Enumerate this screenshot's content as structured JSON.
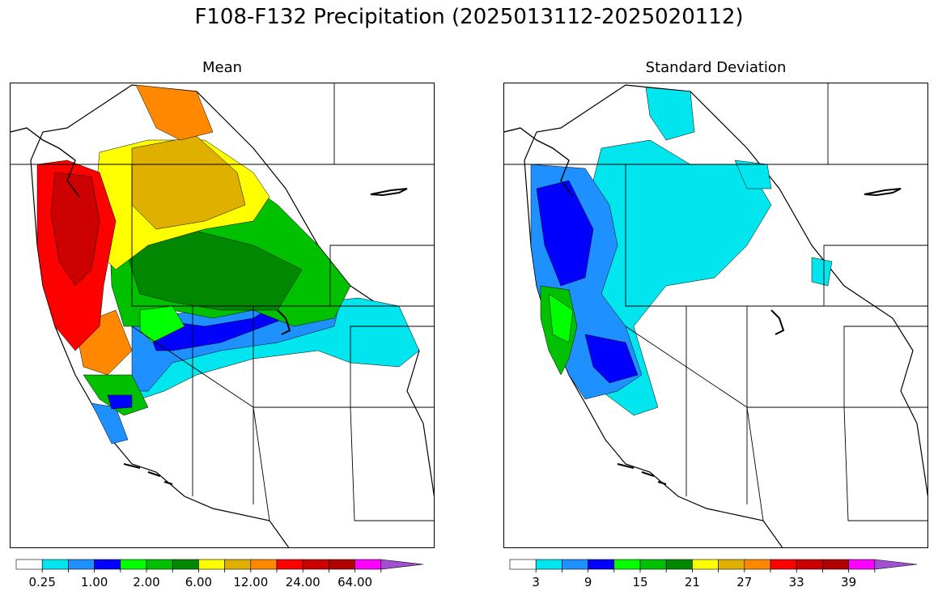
{
  "figure": {
    "title": "F108-F132 Precipitation (2025013112-2025020112)"
  },
  "panels": [
    {
      "id": "mean",
      "title": "Mean",
      "colorbar": {
        "colors": [
          "#ffffff",
          "#00e5ee",
          "#1e90ff",
          "#0000ff",
          "#00ff00",
          "#00c000",
          "#008800",
          "#ffff00",
          "#e0b000",
          "#ff8800",
          "#ff0000",
          "#cc0000",
          "#b00000",
          "#ff00ff",
          "#a050d0"
        ],
        "tick_labels": [
          "0.25",
          "1.00",
          "2.00",
          "6.00",
          "12.00",
          "24.00",
          "64.00"
        ],
        "tick_bin_index": [
          1,
          3,
          5,
          7,
          9,
          11,
          13
        ],
        "extend": "max"
      }
    },
    {
      "id": "stddev",
      "title": "Standard Deviation",
      "colorbar": {
        "colors": [
          "#ffffff",
          "#00e5ee",
          "#1e90ff",
          "#0000ff",
          "#00ff00",
          "#00c000",
          "#008800",
          "#ffff00",
          "#e0b000",
          "#ff8800",
          "#ff0000",
          "#cc0000",
          "#b00000",
          "#ff00ff",
          "#a050d0"
        ],
        "tick_labels": [
          "3",
          "9",
          "15",
          "21",
          "27",
          "33",
          "39"
        ],
        "tick_bin_index": [
          1,
          3,
          5,
          7,
          9,
          11,
          13
        ],
        "extend": "max"
      }
    }
  ]
}
